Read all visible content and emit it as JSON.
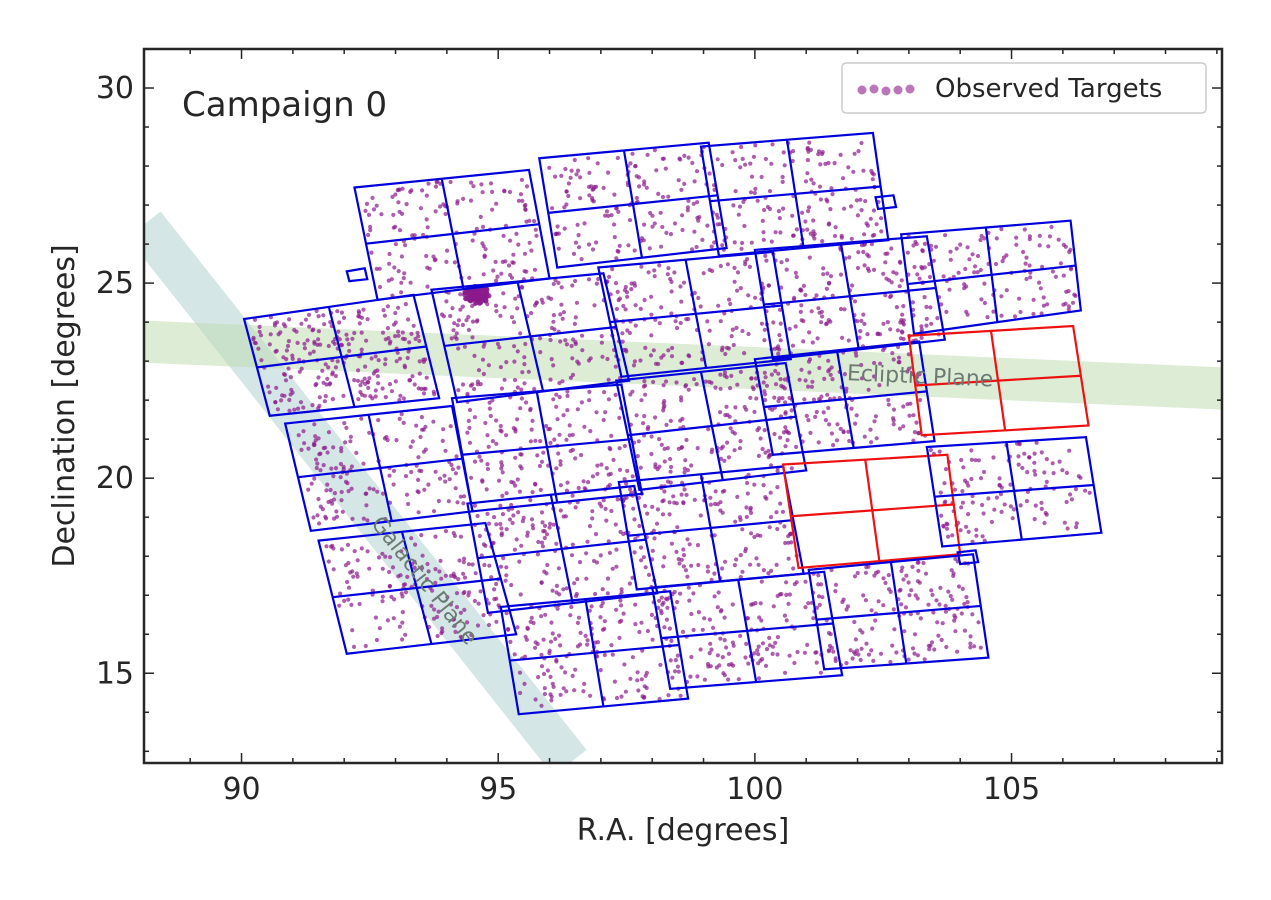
{
  "chart_data": {
    "type": "scatter",
    "title": "",
    "annotation": "Campaign 0",
    "xlabel": "R.A. [degrees]",
    "ylabel": "Declination [degrees]",
    "xlim": [
      88.1,
      109.1
    ],
    "ylim": [
      12.7,
      31.0
    ],
    "x_ticks": [
      90,
      95,
      100,
      105
    ],
    "y_ticks": [
      15,
      20,
      25,
      30
    ],
    "grid": false,
    "legend": {
      "placement": "top-right",
      "entries": [
        "Observed Targets"
      ]
    },
    "colors": {
      "targets": "#8b1a8b",
      "active_module": "#0000dd",
      "failed_module": "#ee1111",
      "galactic_plane": "#b3d1d1",
      "ecliptic_plane": "#bfdcb3"
    },
    "bands": [
      {
        "name": "galactic",
        "label": "Galactic Plane",
        "points": [
          [
            88.1,
            26.5
          ],
          [
            96.4,
            12.7
          ]
        ],
        "width_deg": 0.8
      },
      {
        "name": "ecliptic",
        "label": "Ecliptic Plane",
        "points": [
          [
            88.1,
            23.5
          ],
          [
            109.1,
            22.3
          ]
        ],
        "width_deg": 0.8
      }
    ],
    "modules": [
      {
        "status": "active",
        "corners": [
          [
            92.2,
            27.45
          ],
          [
            95.6,
            27.9
          ],
          [
            96.0,
            25.12
          ],
          [
            92.65,
            24.57
          ]
        ],
        "density": 150
      },
      {
        "status": "active",
        "corners": [
          [
            95.8,
            28.2
          ],
          [
            99.1,
            28.6
          ],
          [
            99.45,
            25.9
          ],
          [
            96.15,
            25.4
          ]
        ],
        "density": 150
      },
      {
        "status": "active",
        "corners": [
          [
            98.95,
            28.5
          ],
          [
            102.3,
            28.85
          ],
          [
            102.6,
            26.1
          ],
          [
            99.3,
            25.7
          ]
        ],
        "density": 150
      },
      {
        "status": "active",
        "corners": [
          [
            90.05,
            24.08
          ],
          [
            93.35,
            24.7
          ],
          [
            93.85,
            22.05
          ],
          [
            90.55,
            21.6
          ]
        ],
        "density": 240
      },
      {
        "status": "active",
        "corners": [
          [
            93.7,
            24.83
          ],
          [
            97.05,
            25.25
          ],
          [
            97.55,
            22.5
          ],
          [
            94.2,
            21.95
          ]
        ],
        "density": 150
      },
      {
        "status": "active",
        "corners": [
          [
            96.95,
            25.4
          ],
          [
            100.35,
            25.8
          ],
          [
            100.7,
            23.05
          ],
          [
            97.4,
            22.6
          ]
        ],
        "density": 150
      },
      {
        "status": "active",
        "corners": [
          [
            100.0,
            25.85
          ],
          [
            103.35,
            26.2
          ],
          [
            103.7,
            23.55
          ],
          [
            100.35,
            23.05
          ]
        ],
        "density": 150
      },
      {
        "status": "active",
        "corners": [
          [
            102.85,
            26.25
          ],
          [
            106.15,
            26.6
          ],
          [
            106.35,
            24.3
          ],
          [
            103.1,
            23.7
          ]
        ],
        "density": 120
      },
      {
        "status": "active",
        "corners": [
          [
            90.85,
            21.4
          ],
          [
            94.1,
            21.85
          ],
          [
            94.5,
            19.15
          ],
          [
            91.35,
            18.65
          ]
        ],
        "density": 150
      },
      {
        "status": "active",
        "corners": [
          [
            94.1,
            22.05
          ],
          [
            97.4,
            22.4
          ],
          [
            97.8,
            19.6
          ],
          [
            94.5,
            19.15
          ]
        ],
        "density": 150
      },
      {
        "status": "active",
        "corners": [
          [
            97.3,
            22.5
          ],
          [
            100.6,
            22.95
          ],
          [
            101.0,
            20.2
          ],
          [
            97.75,
            19.7
          ]
        ],
        "density": 150
      },
      {
        "status": "active",
        "corners": [
          [
            100.0,
            23.05
          ],
          [
            103.2,
            23.5
          ],
          [
            103.5,
            20.95
          ],
          [
            100.35,
            20.6
          ]
        ],
        "density": 140
      },
      {
        "status": "failed",
        "corners": [
          [
            103.0,
            23.65
          ],
          [
            106.2,
            23.9
          ],
          [
            106.5,
            21.35
          ],
          [
            103.25,
            21.1
          ]
        ],
        "density": 0
      },
      {
        "status": "active",
        "corners": [
          [
            91.5,
            18.4
          ],
          [
            94.75,
            18.85
          ],
          [
            95.35,
            16.0
          ],
          [
            92.05,
            15.5
          ]
        ],
        "density": 150
      },
      {
        "status": "active",
        "corners": [
          [
            94.4,
            19.35
          ],
          [
            97.65,
            19.8
          ],
          [
            98.1,
            17.05
          ],
          [
            94.8,
            16.55
          ]
        ],
        "density": 150
      },
      {
        "status": "active",
        "corners": [
          [
            97.35,
            19.9
          ],
          [
            100.55,
            20.3
          ],
          [
            100.95,
            17.55
          ],
          [
            97.7,
            17.15
          ]
        ],
        "density": 150
      },
      {
        "status": "failed",
        "corners": [
          [
            100.55,
            20.35
          ],
          [
            103.75,
            20.6
          ],
          [
            104.0,
            18.05
          ],
          [
            100.85,
            17.7
          ]
        ],
        "density": 0
      },
      {
        "status": "active",
        "corners": [
          [
            103.35,
            20.8
          ],
          [
            106.45,
            21.05
          ],
          [
            106.75,
            18.6
          ],
          [
            103.65,
            18.25
          ]
        ],
        "density": 120
      },
      {
        "status": "active",
        "corners": [
          [
            95.05,
            16.7
          ],
          [
            98.35,
            17.1
          ],
          [
            98.7,
            14.35
          ],
          [
            95.4,
            13.95
          ]
        ],
        "density": 150
      },
      {
        "status": "active",
        "corners": [
          [
            98.0,
            17.2
          ],
          [
            101.35,
            17.6
          ],
          [
            101.7,
            14.95
          ],
          [
            98.35,
            14.6
          ]
        ],
        "density": 150
      },
      {
        "status": "active",
        "corners": [
          [
            101.05,
            17.65
          ],
          [
            104.25,
            18.05
          ],
          [
            104.55,
            15.4
          ],
          [
            101.35,
            15.1
          ]
        ],
        "density": 150
      }
    ],
    "fine_guidance": [
      [
        [
          92.05,
          25.3
        ],
        [
          92.4,
          25.38
        ],
        [
          92.45,
          25.1
        ],
        [
          92.1,
          25.05
        ]
      ],
      [
        [
          102.35,
          27.2
        ],
        [
          102.7,
          27.25
        ],
        [
          102.75,
          26.95
        ],
        [
          102.4,
          26.9
        ]
      ],
      [
        [
          103.95,
          18.1
        ],
        [
          104.3,
          18.15
        ],
        [
          104.35,
          17.85
        ],
        [
          104.0,
          17.8
        ]
      ]
    ],
    "cluster": {
      "ra": 94.6,
      "dec": 24.7,
      "count": 90
    }
  }
}
